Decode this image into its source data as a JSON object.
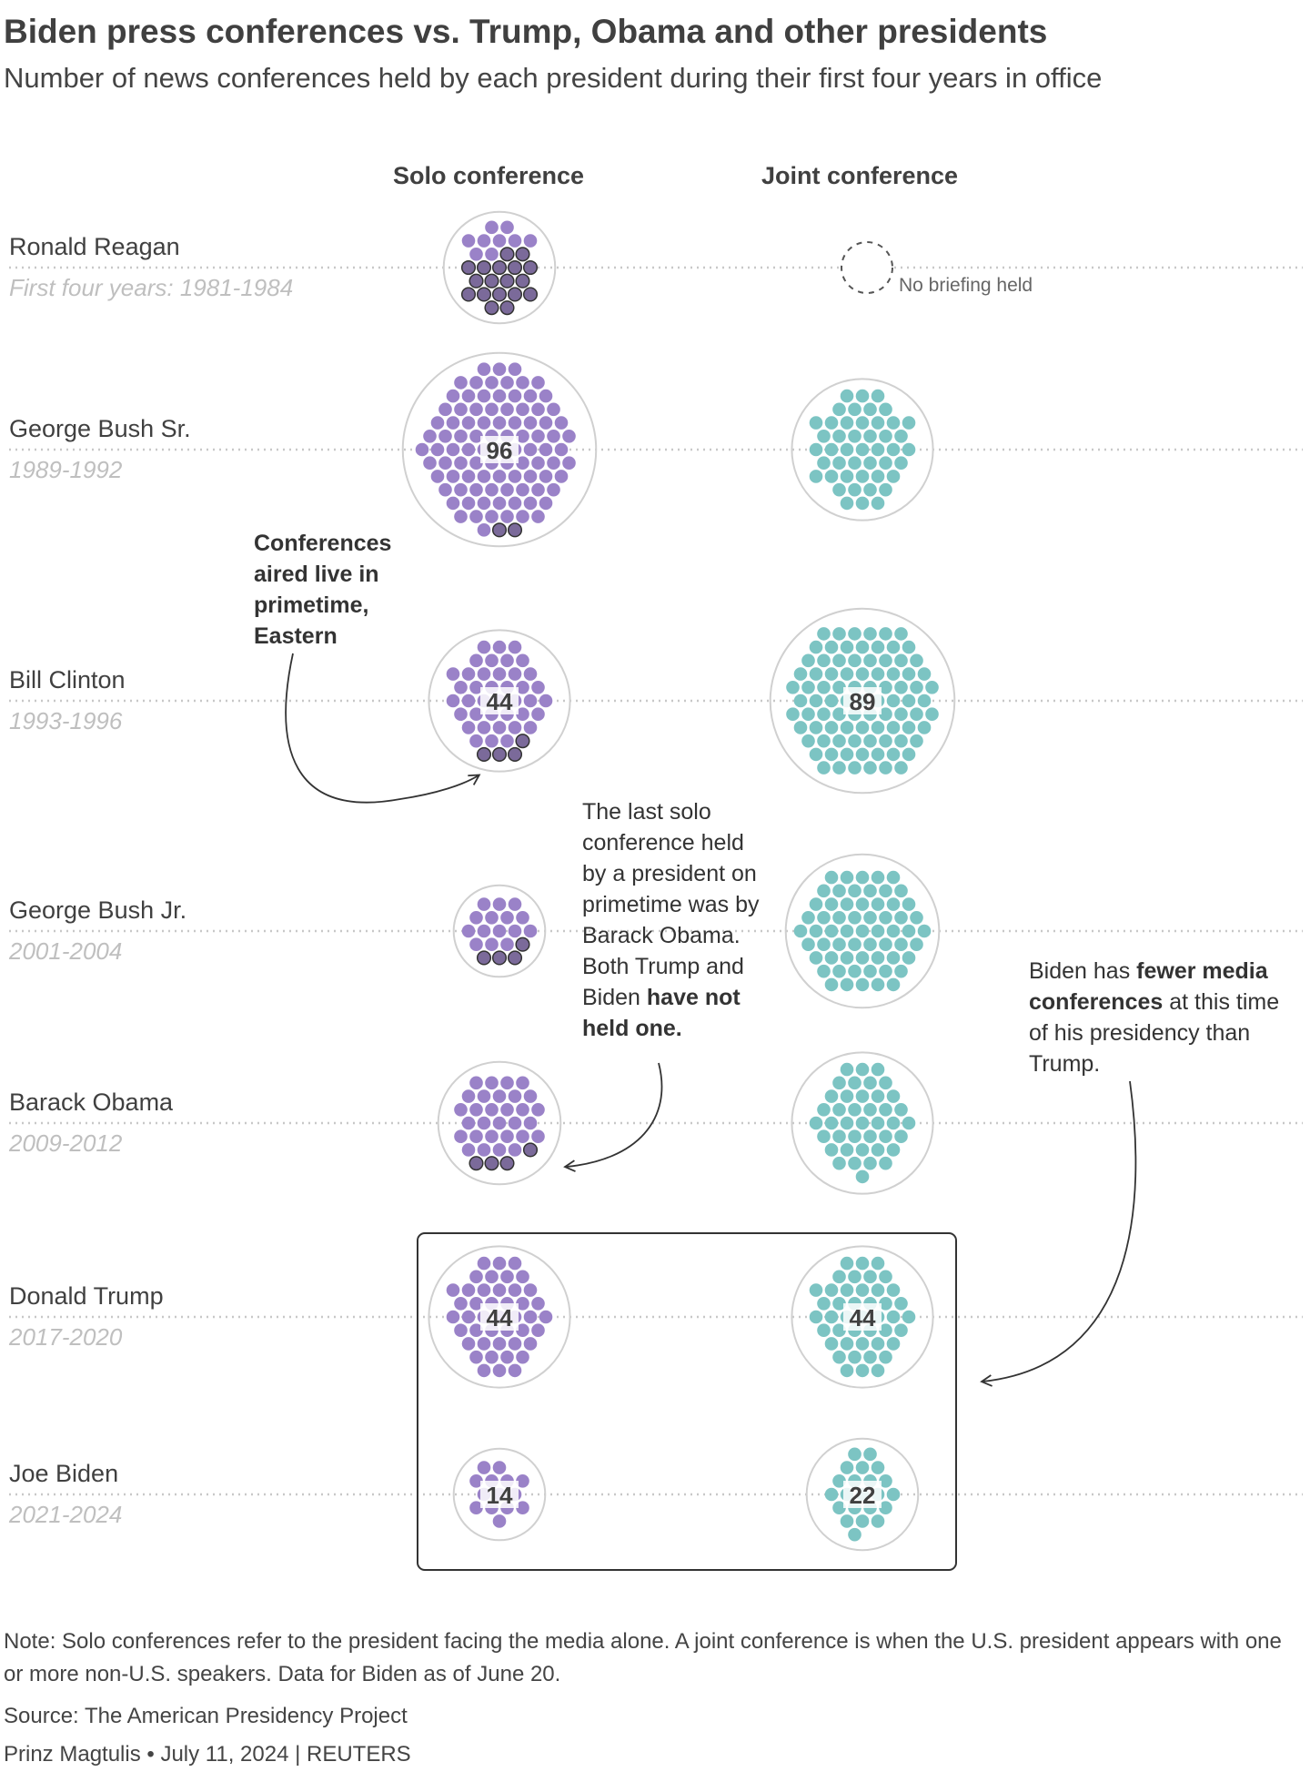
{
  "title": "Biden press conferences vs. Trump, Obama and other presidents",
  "subtitle": "Number of news conferences held by each president during their first four years in office",
  "chart_data": {
    "type": "dot-cluster",
    "columns": [
      "Solo conference",
      "Joint conference"
    ],
    "presidents": [
      {
        "name": "Ronald Reagan",
        "years": "First four years: 1981-1984",
        "solo": 27,
        "solo_primetime": 18,
        "joint": 0,
        "solo_label": "",
        "joint_label": "",
        "joint_note": "No briefing held"
      },
      {
        "name": "George Bush Sr.",
        "years": "1989-1992",
        "solo": 96,
        "solo_primetime": 2,
        "joint": 46,
        "solo_label": "96",
        "joint_label": ""
      },
      {
        "name": "Bill Clinton",
        "years": "1993-1996",
        "solo": 44,
        "solo_primetime": 4,
        "joint": 89,
        "solo_label": "44",
        "joint_label": "89"
      },
      {
        "name": "George Bush Jr.",
        "years": "2001-2004",
        "solo": 19,
        "solo_primetime": 4,
        "joint": 61,
        "solo_label": "",
        "joint_label": ""
      },
      {
        "name": "Barack Obama",
        "years": "2009-2012",
        "solo": 34,
        "solo_primetime": 4,
        "joint": 41,
        "solo_label": "",
        "joint_label": ""
      },
      {
        "name": "Donald Trump",
        "years": "2017-2020",
        "solo": 44,
        "solo_primetime": 0,
        "joint": 44,
        "solo_label": "44",
        "joint_label": "44"
      },
      {
        "name": "Joe Biden",
        "years": "2021-2024",
        "solo": 14,
        "solo_primetime": 0,
        "joint": 22,
        "solo_label": "14",
        "joint_label": "22"
      }
    ],
    "colors": {
      "solo": "#9a82c8",
      "primetime": "#7b6a9a",
      "joint": "#7cc4c3",
      "outline": "#d0d0d0"
    }
  },
  "annotations": {
    "primetime": "Conferences aired live in primetime, Eastern",
    "last_solo_parts": [
      "The last solo conference held by a president on primetime was by Barack Obama. Both Trump and Biden ",
      "have not held one."
    ],
    "biden_parts": [
      "Biden has ",
      "fewer media conferences",
      " at this time of his presidency than Trump."
    ]
  },
  "note": "Note: Solo conferences refer to the president facing the media alone. A joint conference is when the U.S. president appears with one or more non-U.S. speakers. Data for Biden as of June 20.",
  "source": "Source: The American Presidency Project",
  "credit": "Prinz Magtulis • July 11, 2024 | REUTERS"
}
